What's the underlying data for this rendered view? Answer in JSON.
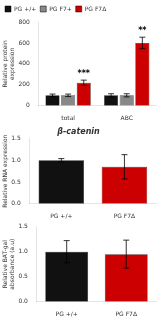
{
  "chart_data": [
    {
      "type": "bar",
      "categories": [
        "total",
        "ABC"
      ],
      "series": [
        {
          "name": "PG +/+",
          "color": "#111111",
          "values": [
            100,
            100
          ],
          "errors": [
            12,
            15
          ]
        },
        {
          "name": "PG F7+",
          "color": "#888888",
          "values": [
            100,
            100
          ],
          "errors": [
            12,
            15
          ]
        },
        {
          "name": "PG F7Δ",
          "color": "#cc0000",
          "values": [
            220,
            600
          ],
          "errors": [
            25,
            55
          ]
        }
      ],
      "ylabel": "Relative protein expression",
      "ylim": [
        0,
        800
      ],
      "yticks": [
        0,
        200,
        400,
        600,
        800
      ],
      "annotations": [
        {
          "text": "***",
          "category": "total",
          "series": "PG F7Δ"
        },
        {
          "text": "**",
          "category": "ABC",
          "series": "PG F7Δ"
        }
      ],
      "legend": "upper left",
      "grid": false
    },
    {
      "type": "bar",
      "title": "β-catenin",
      "categories": [
        "PG +/+",
        "PG F7Δ"
      ],
      "colors": [
        "#111111",
        "#cc0000"
      ],
      "values": [
        1.0,
        0.85
      ],
      "errors": [
        0.04,
        0.28
      ],
      "ylabel": "Relative RNA expression",
      "ylim": [
        0,
        1.5
      ],
      "yticks": [
        {
          "value": 0,
          "label": "0.0"
        },
        0.5,
        {
          "value": 1,
          "label": "1.0"
        },
        1.5
      ],
      "grid": false
    },
    {
      "type": "bar",
      "categories": [
        "PG +/+",
        "PG F7Δ"
      ],
      "colors": [
        "#111111",
        "#cc0000"
      ],
      "values": [
        1.0,
        0.95
      ],
      "errors": [
        0.22,
        0.28
      ],
      "ylabel": "Relative BAT-gal absorbance (a.u)",
      "ylim": [
        0,
        1.5
      ],
      "yticks": [
        {
          "value": 0,
          "label": "0.0"
        },
        0.5,
        {
          "value": 1,
          "label": "1.0"
        },
        1.5
      ],
      "grid": false
    }
  ]
}
